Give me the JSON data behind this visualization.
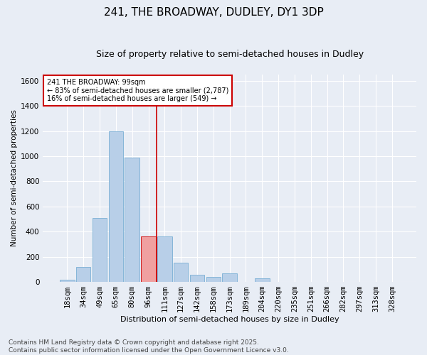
{
  "title": "241, THE BROADWAY, DUDLEY, DY1 3DP",
  "subtitle": "Size of property relative to semi-detached houses in Dudley",
  "xlabel": "Distribution of semi-detached houses by size in Dudley",
  "ylabel": "Number of semi-detached properties",
  "categories": [
    "18sqm",
    "34sqm",
    "49sqm",
    "65sqm",
    "80sqm",
    "96sqm",
    "111sqm",
    "127sqm",
    "142sqm",
    "158sqm",
    "173sqm",
    "189sqm",
    "204sqm",
    "220sqm",
    "235sqm",
    "251sqm",
    "266sqm",
    "282sqm",
    "297sqm",
    "313sqm",
    "328sqm"
  ],
  "values": [
    15,
    120,
    510,
    1200,
    990,
    360,
    360,
    155,
    55,
    40,
    70,
    0,
    30,
    0,
    0,
    0,
    0,
    0,
    0,
    0,
    0
  ],
  "bar_color": "#b8cfe8",
  "bar_edge_color": "#7aafd4",
  "highlight_bar_index": 5,
  "highlight_bar_color": "#f0a0a0",
  "highlight_bar_edge_color": "#cc0000",
  "vline_x": 5.5,
  "vline_color": "#cc0000",
  "annotation_text": "241 THE BROADWAY: 99sqm\n← 83% of semi-detached houses are smaller (2,787)\n16% of semi-detached houses are larger (549) →",
  "annotation_box_color": "#ffffff",
  "annotation_box_edge_color": "#cc0000",
  "ylim": [
    0,
    1650
  ],
  "yticks": [
    0,
    200,
    400,
    600,
    800,
    1000,
    1200,
    1400,
    1600
  ],
  "footer_text": "Contains HM Land Registry data © Crown copyright and database right 2025.\nContains public sector information licensed under the Open Government Licence v3.0.",
  "background_color": "#e8edf5",
  "plot_background_color": "#e8edf5",
  "grid_color": "#ffffff",
  "title_fontsize": 11,
  "subtitle_fontsize": 9,
  "axis_fontsize": 7.5,
  "footer_fontsize": 6.5
}
